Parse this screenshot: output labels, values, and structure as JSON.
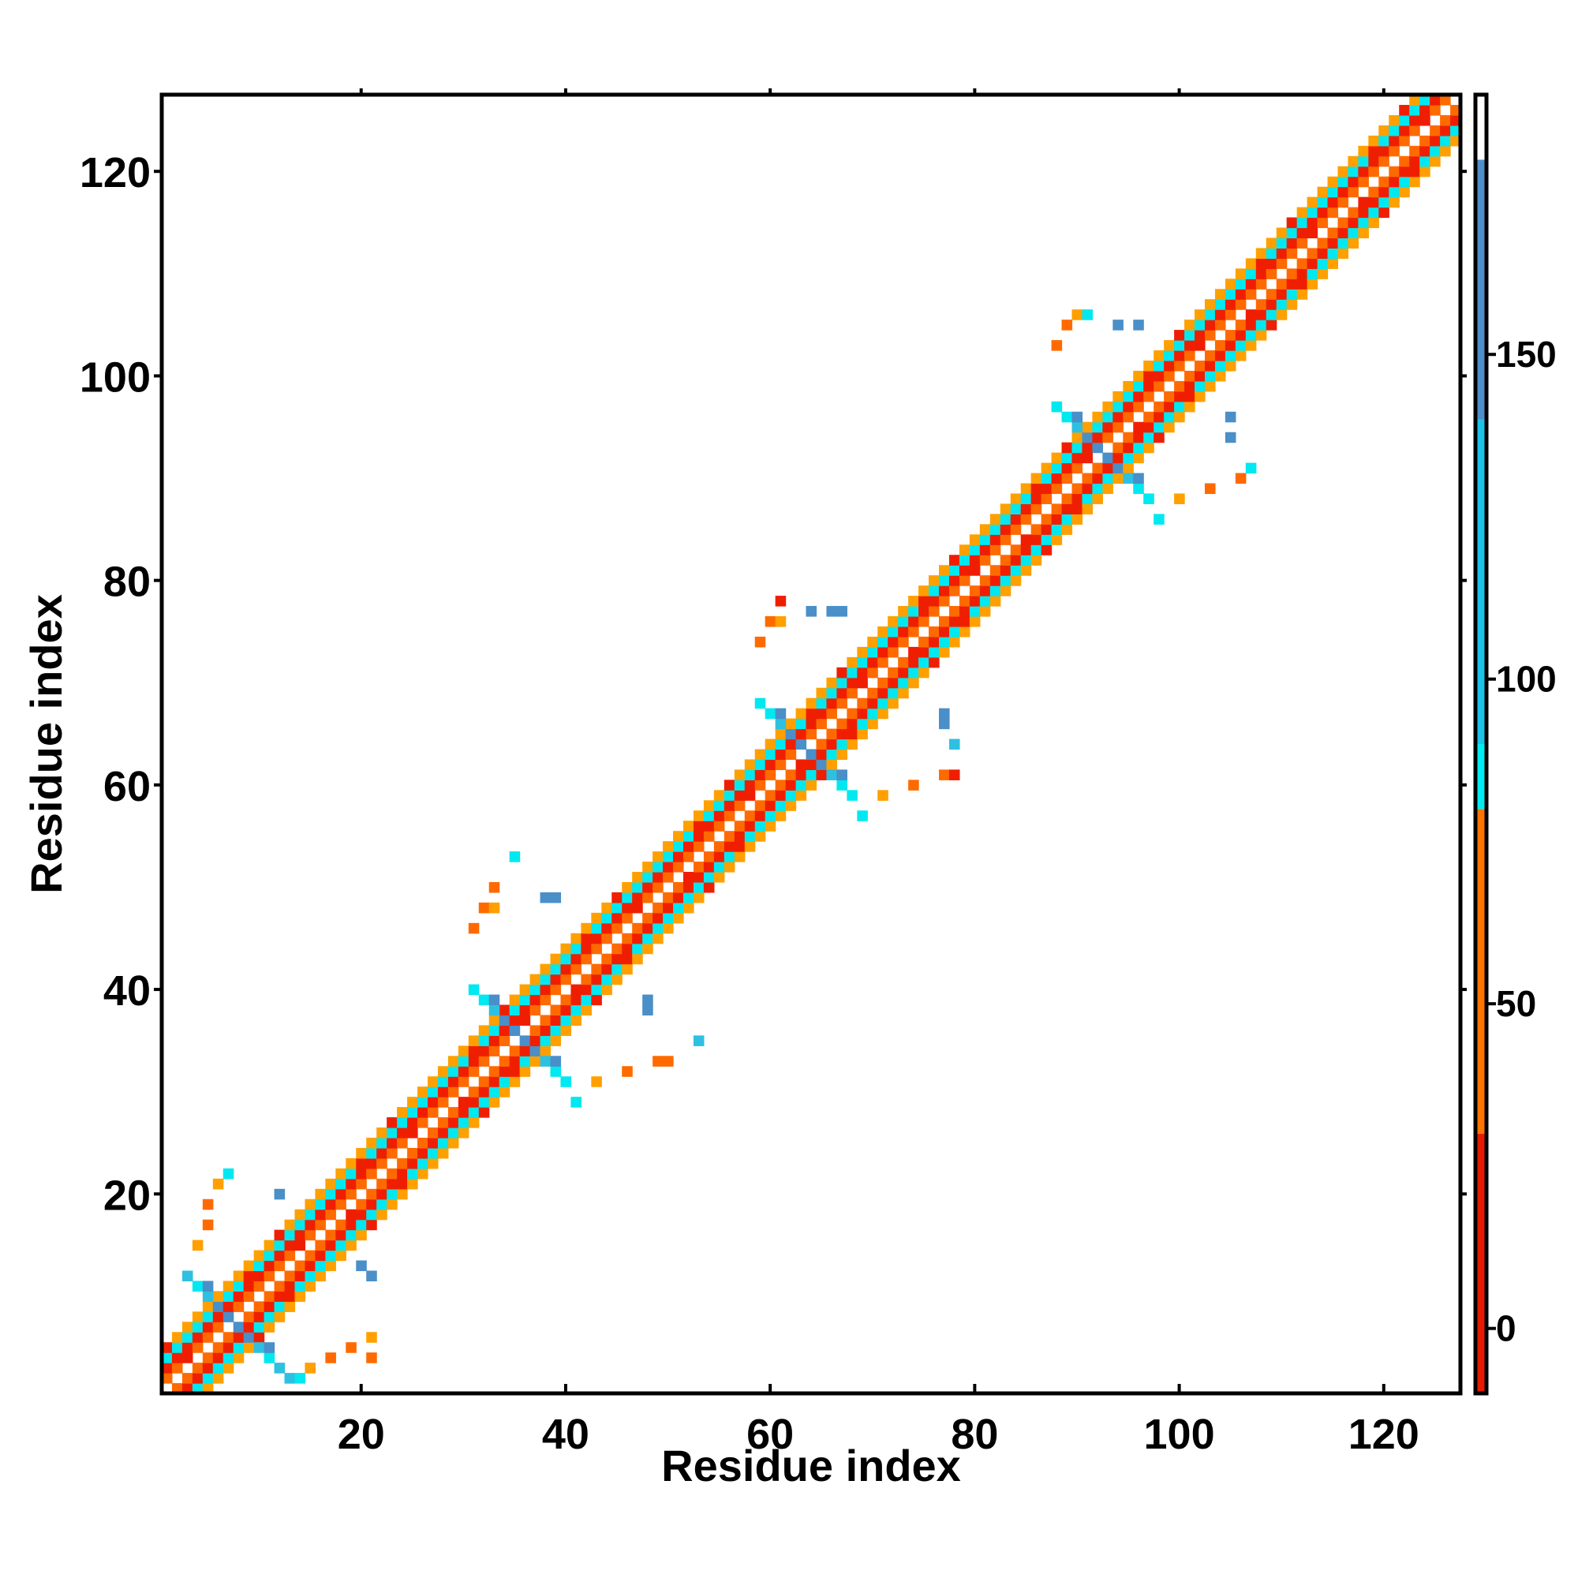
{
  "chart_data": {
    "type": "heatmap",
    "title": "",
    "xlabel": "Residue index",
    "ylabel": "Residue index",
    "xlim": [
      0.5,
      127.5
    ],
    "ylim": [
      0.5,
      127.5
    ],
    "xticks": [
      20,
      40,
      60,
      80,
      100,
      120
    ],
    "yticks": [
      20,
      40,
      60,
      80,
      100,
      120
    ],
    "xtick_labels": [
      "20",
      "40",
      "60",
      "80",
      "100",
      "120"
    ],
    "ytick_labels": [
      "20",
      "40",
      "60",
      "80",
      "100",
      "120"
    ],
    "grid": false,
    "legend": "colorbar-right",
    "colorbar": {
      "range": [
        -10,
        190
      ],
      "ticks": [
        0,
        50,
        100,
        150
      ],
      "tick_labels": [
        "0",
        "50",
        "100",
        "150"
      ],
      "bands": [
        {
          "from": -10,
          "to": 30,
          "color": "#e61b00"
        },
        {
          "from": 30,
          "to": 80,
          "color": "#ff7300"
        },
        {
          "from": 80,
          "to": 90,
          "color": "#00ecf0"
        },
        {
          "from": 90,
          "to": 140,
          "color": "#1ec2e6"
        },
        {
          "from": 140,
          "to": 180,
          "color": "#4f8ec9"
        },
        {
          "from": 180,
          "to": 190,
          "color": "#ffffff"
        }
      ]
    },
    "color_classes": {
      "R": "#f01e00",
      "O": "#ff6a00",
      "Y": "#ffa000",
      "C": "#00e8f0",
      "T": "#2ec0e0",
      "B": "#4a8fc8"
    },
    "description": "Symmetric contact/angle map: diagonal band (|i-j|<=4) with alternating red/orange/cyan stripes, plus blue cross-shaped clusters.",
    "diagonal_band": {
      "from": 1,
      "to": 127,
      "half_width": 4,
      "pattern": [
        "",
        "O",
        "R",
        "C",
        "Y"
      ]
    },
    "extra_cells": [
      {
        "x": 5,
        "y": 10,
        "c": "T"
      },
      {
        "x": 6,
        "y": 9,
        "c": "B"
      },
      {
        "x": 4,
        "y": 11,
        "c": "C"
      },
      {
        "x": 7,
        "y": 8,
        "c": "B"
      },
      {
        "x": 3,
        "y": 12,
        "c": "T"
      },
      {
        "x": 5,
        "y": 11,
        "c": "B"
      },
      {
        "x": 10,
        "y": 5,
        "c": "T"
      },
      {
        "x": 9,
        "y": 6,
        "c": "B"
      },
      {
        "x": 11,
        "y": 4,
        "c": "C"
      },
      {
        "x": 8,
        "y": 7,
        "c": "B"
      },
      {
        "x": 12,
        "y": 3,
        "c": "T"
      },
      {
        "x": 11,
        "y": 5,
        "c": "B"
      },
      {
        "x": 13,
        "y": 2,
        "c": "T"
      },
      {
        "x": 14,
        "y": 2,
        "c": "C"
      },
      {
        "x": 15,
        "y": 3,
        "c": "Y"
      },
      {
        "x": 17,
        "y": 4,
        "c": "O"
      },
      {
        "x": 19,
        "y": 5,
        "c": "O"
      },
      {
        "x": 21,
        "y": 4,
        "c": "O"
      },
      {
        "x": 21,
        "y": 6,
        "c": "Y"
      },
      {
        "x": 20,
        "y": 13,
        "c": "B"
      },
      {
        "x": 21,
        "y": 12,
        "c": "B"
      },
      {
        "x": 4,
        "y": 15,
        "c": "Y"
      },
      {
        "x": 5,
        "y": 17,
        "c": "O"
      },
      {
        "x": 5,
        "y": 19,
        "c": "O"
      },
      {
        "x": 6,
        "y": 21,
        "c": "Y"
      },
      {
        "x": 7,
        "y": 22,
        "c": "C"
      },
      {
        "x": 12,
        "y": 20,
        "c": "B"
      },
      {
        "x": 34,
        "y": 37,
        "c": "B"
      },
      {
        "x": 33,
        "y": 38,
        "c": "T"
      },
      {
        "x": 32,
        "y": 39,
        "c": "C"
      },
      {
        "x": 35,
        "y": 36,
        "c": "B"
      },
      {
        "x": 31,
        "y": 40,
        "c": "C"
      },
      {
        "x": 33,
        "y": 39,
        "c": "B"
      },
      {
        "x": 37,
        "y": 34,
        "c": "B"
      },
      {
        "x": 38,
        "y": 33,
        "c": "T"
      },
      {
        "x": 39,
        "y": 32,
        "c": "C"
      },
      {
        "x": 36,
        "y": 35,
        "c": "B"
      },
      {
        "x": 40,
        "y": 31,
        "c": "C"
      },
      {
        "x": 39,
        "y": 33,
        "c": "B"
      },
      {
        "x": 41,
        "y": 29,
        "c": "C"
      },
      {
        "x": 43,
        "y": 31,
        "c": "Y"
      },
      {
        "x": 46,
        "y": 32,
        "c": "O"
      },
      {
        "x": 49,
        "y": 33,
        "c": "O"
      },
      {
        "x": 50,
        "y": 33,
        "c": "O"
      },
      {
        "x": 53,
        "y": 35,
        "c": "T"
      },
      {
        "x": 48,
        "y": 38,
        "c": "B"
      },
      {
        "x": 48,
        "y": 39,
        "c": "B"
      },
      {
        "x": 31,
        "y": 46,
        "c": "O"
      },
      {
        "x": 32,
        "y": 48,
        "c": "O"
      },
      {
        "x": 33,
        "y": 48,
        "c": "Y"
      },
      {
        "x": 33,
        "y": 50,
        "c": "O"
      },
      {
        "x": 38,
        "y": 49,
        "c": "B"
      },
      {
        "x": 39,
        "y": 49,
        "c": "B"
      },
      {
        "x": 35,
        "y": 53,
        "c": "C"
      },
      {
        "x": 62,
        "y": 65,
        "c": "B"
      },
      {
        "x": 61,
        "y": 66,
        "c": "T"
      },
      {
        "x": 60,
        "y": 67,
        "c": "C"
      },
      {
        "x": 63,
        "y": 64,
        "c": "B"
      },
      {
        "x": 59,
        "y": 68,
        "c": "C"
      },
      {
        "x": 61,
        "y": 67,
        "c": "B"
      },
      {
        "x": 65,
        "y": 62,
        "c": "B"
      },
      {
        "x": 66,
        "y": 61,
        "c": "T"
      },
      {
        "x": 67,
        "y": 60,
        "c": "C"
      },
      {
        "x": 64,
        "y": 63,
        "c": "B"
      },
      {
        "x": 68,
        "y": 59,
        "c": "C"
      },
      {
        "x": 67,
        "y": 61,
        "c": "B"
      },
      {
        "x": 69,
        "y": 57,
        "c": "C"
      },
      {
        "x": 71,
        "y": 59,
        "c": "Y"
      },
      {
        "x": 74,
        "y": 60,
        "c": "O"
      },
      {
        "x": 77,
        "y": 61,
        "c": "O"
      },
      {
        "x": 78,
        "y": 61,
        "c": "R"
      },
      {
        "x": 78,
        "y": 64,
        "c": "T"
      },
      {
        "x": 77,
        "y": 66,
        "c": "B"
      },
      {
        "x": 77,
        "y": 67,
        "c": "B"
      },
      {
        "x": 59,
        "y": 74,
        "c": "O"
      },
      {
        "x": 60,
        "y": 76,
        "c": "O"
      },
      {
        "x": 61,
        "y": 76,
        "c": "Y"
      },
      {
        "x": 61,
        "y": 78,
        "c": "R"
      },
      {
        "x": 64,
        "y": 77,
        "c": "B"
      },
      {
        "x": 66,
        "y": 77,
        "c": "B"
      },
      {
        "x": 67,
        "y": 77,
        "c": "B"
      },
      {
        "x": 91,
        "y": 94,
        "c": "B"
      },
      {
        "x": 90,
        "y": 95,
        "c": "T"
      },
      {
        "x": 89,
        "y": 96,
        "c": "C"
      },
      {
        "x": 92,
        "y": 93,
        "c": "B"
      },
      {
        "x": 88,
        "y": 97,
        "c": "C"
      },
      {
        "x": 90,
        "y": 96,
        "c": "B"
      },
      {
        "x": 94,
        "y": 91,
        "c": "B"
      },
      {
        "x": 95,
        "y": 90,
        "c": "T"
      },
      {
        "x": 96,
        "y": 89,
        "c": "C"
      },
      {
        "x": 93,
        "y": 92,
        "c": "B"
      },
      {
        "x": 97,
        "y": 88,
        "c": "C"
      },
      {
        "x": 96,
        "y": 90,
        "c": "B"
      },
      {
        "x": 98,
        "y": 86,
        "c": "C"
      },
      {
        "x": 100,
        "y": 88,
        "c": "Y"
      },
      {
        "x": 103,
        "y": 89,
        "c": "O"
      },
      {
        "x": 106,
        "y": 90,
        "c": "O"
      },
      {
        "x": 107,
        "y": 91,
        "c": "C"
      },
      {
        "x": 105,
        "y": 94,
        "c": "B"
      },
      {
        "x": 105,
        "y": 96,
        "c": "B"
      },
      {
        "x": 88,
        "y": 103,
        "c": "O"
      },
      {
        "x": 89,
        "y": 105,
        "c": "O"
      },
      {
        "x": 90,
        "y": 106,
        "c": "Y"
      },
      {
        "x": 91,
        "y": 106,
        "c": "C"
      },
      {
        "x": 94,
        "y": 105,
        "c": "B"
      },
      {
        "x": 96,
        "y": 105,
        "c": "B"
      }
    ]
  }
}
